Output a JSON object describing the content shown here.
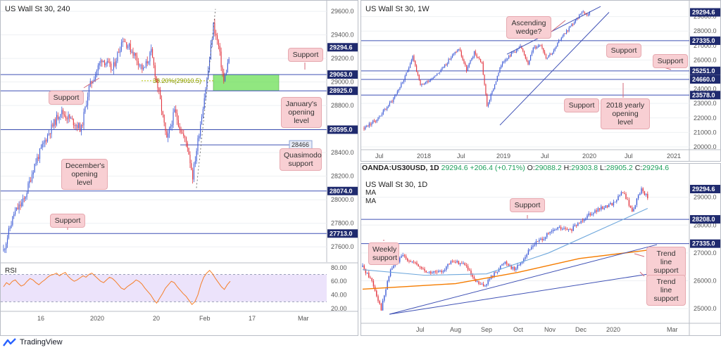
{
  "colors": {
    "grid": "#eef0f3",
    "hline": "#3f51b5",
    "candle_up": "#3d5bd6",
    "candle_down": "#e2353f",
    "wick": "#1f2a44",
    "label_bg": "#1f2a6e",
    "green_zone": "#7ee36b",
    "rsi_line": "#f57f2a",
    "rsi_band": "#ece3fb",
    "ma_blue": "#6fa8dc",
    "ma_orange": "#f57c00",
    "fib": "#b5c400"
  },
  "chart_data": [
    {
      "type": "candlestick",
      "title": "US Wall St 30, 240",
      "x_tick_labels": [
        "16",
        "2020",
        "20",
        "Feb",
        "17",
        "Mar"
      ],
      "y_tick_labels": [
        "29600.0",
        "29400.0",
        "29200.0",
        "29000.0",
        "28800.0",
        "28600.0",
        "28400.0",
        "28200.0",
        "28000.0",
        "27800.0",
        "27600.0"
      ],
      "ylim": [
        27470,
        29690
      ],
      "levels": [
        {
          "label": "29294.6",
          "value": 29294.6,
          "style": "price"
        },
        {
          "label": "29063.0",
          "value": 29063.0,
          "style": "line"
        },
        {
          "label": "28925.0",
          "value": 28925.0,
          "style": "line"
        },
        {
          "label": "28595.0",
          "value": 28595.0,
          "style": "line"
        },
        {
          "label": "28466",
          "value": 28466,
          "style": "short"
        },
        {
          "label": "28074.0",
          "value": 28074.0,
          "style": "line"
        },
        {
          "label": "27713.0",
          "value": 27713.0,
          "style": "line"
        }
      ],
      "fib_label": "38.20%(29010.5)",
      "fib_value": 29010.5,
      "zone": [
        28925.0,
        29063.0
      ],
      "rsi": {
        "label": "RSI",
        "y_tick_labels": [
          "80.00",
          "60.00",
          "40.00",
          "20.00"
        ],
        "band": [
          30,
          70
        ],
        "ylim": [
          18,
          86
        ],
        "values": [
          52,
          58,
          55,
          60,
          62,
          57,
          53,
          55,
          60,
          64,
          62,
          58,
          55,
          59,
          62,
          66,
          69,
          70,
          72,
          68,
          71,
          73,
          67,
          63,
          60,
          62,
          65,
          68,
          66,
          70,
          72,
          68,
          64,
          60,
          58,
          62,
          66,
          64,
          60,
          55,
          50,
          48,
          52,
          55,
          58,
          62,
          60,
          56,
          50,
          45,
          40,
          33,
          28,
          35,
          42,
          50,
          55,
          60,
          58,
          52,
          47,
          42,
          38,
          32,
          26,
          30,
          40,
          55,
          66,
          72,
          76,
          71,
          64,
          58,
          52,
          48,
          55,
          60
        ]
      },
      "annotations": [
        "Support",
        "January's opening level",
        "Support",
        "December's opening level",
        "Quasimodo support",
        "Support"
      ]
    },
    {
      "type": "candlestick",
      "title": "US Wall St 30, 1W",
      "x_tick_labels": [
        "Jul",
        "2018",
        "Jul",
        "2019",
        "Jul",
        "2020",
        "Jul",
        "2021"
      ],
      "y_tick_labels": [
        "30000.0",
        "29000.0",
        "28000.0",
        "27000.0",
        "26000.0",
        "25000.0",
        "24000.0",
        "23000.0",
        "22000.0",
        "21000.0",
        "20000.0"
      ],
      "ylim": [
        19900,
        30100
      ],
      "levels": [
        {
          "label": "29294.6",
          "value": 29294.6,
          "style": "price"
        },
        {
          "label": "27335.0",
          "value": 27335.0,
          "style": "line"
        },
        {
          "label": "25251.0",
          "value": 25251.0,
          "style": "line"
        },
        {
          "label": "24660.0",
          "value": 24660.0,
          "style": "line"
        },
        {
          "label": "23578.0",
          "value": 23578.0,
          "style": "line"
        }
      ],
      "annotations": [
        "Ascending wedge?",
        "Support",
        "Support",
        "Support",
        "2018 yearly opening level"
      ]
    },
    {
      "type": "candlestick",
      "title": "US Wall St 30, 1D",
      "symbol": "OANDA:US30USD, 1D",
      "last": "29294.6",
      "change": "+206.4 (+0.71%)",
      "o": "29088.2",
      "h": "29303.8",
      "l": "28905.2",
      "c": "29294.6",
      "ma_labels": [
        "MA",
        "MA"
      ],
      "x_tick_labels": [
        "Jul",
        "Aug",
        "Sep",
        "Oct",
        "Nov",
        "Dec",
        "2020",
        "Mar"
      ],
      "y_tick_labels": [
        "29000.0",
        "28000.0",
        "27000.0",
        "26000.0",
        "25000.0"
      ],
      "ylim": [
        24500,
        29850
      ],
      "levels": [
        {
          "label": "29294.6",
          "value": 29294.6,
          "style": "price"
        },
        {
          "label": "28208.0",
          "value": 28208.0,
          "style": "line"
        },
        {
          "label": "27335.0",
          "value": 27335.0,
          "style": "line"
        }
      ],
      "annotations": [
        "Support",
        "Weekly support",
        "Trend line support",
        "Trend line support"
      ]
    }
  ],
  "footer": {
    "brand": "TradingView"
  }
}
